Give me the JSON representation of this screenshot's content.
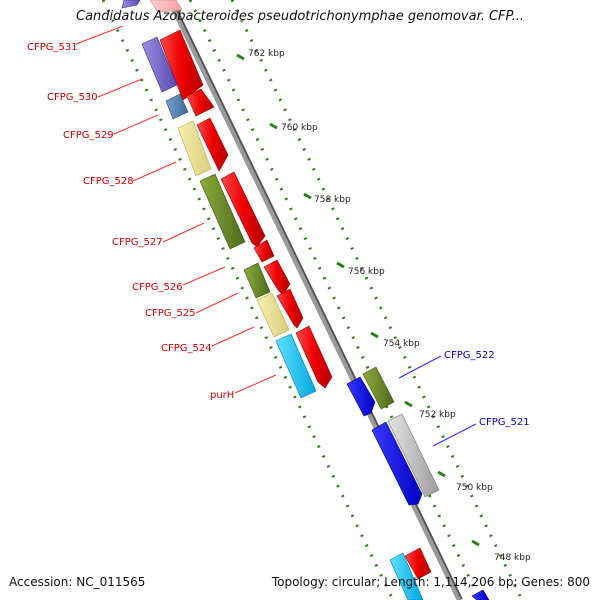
{
  "title": "Candidatus Azobacteroides pseudotrichonymphae genomovar. CFP...",
  "footer": {
    "accession": "Accession: NC_011565",
    "summary": "Topology: circular; Length: 1,114,206 bp; Genes: 800"
  },
  "colors": {
    "backbone": "#8c8c8c",
    "dot_track": "#2e7d1e",
    "forward_gene": "#ee0000",
    "left_label": "#cc0000",
    "right_label": "#0000bb",
    "reverse_blue": "#1a1aee",
    "reverse_olive": "#6b8e23",
    "reverse_gray": "#bbbbbb"
  },
  "scale": {
    "ticks": [
      "762 kbp",
      "760 kbp",
      "758 kbp",
      "756 kbp",
      "754 kbp",
      "752 kbp",
      "750 kbp",
      "748 kbp"
    ]
  },
  "gene_labels_left": [
    "CFPG_531",
    "CFPG_530",
    "CFPG_529",
    "CFPG_528",
    "CFPG_527",
    "CFPG_526",
    "CFPG_525",
    "CFPG_524",
    "purH"
  ],
  "gene_labels_right": [
    "CFPG_522",
    "CFPG_521"
  ]
}
